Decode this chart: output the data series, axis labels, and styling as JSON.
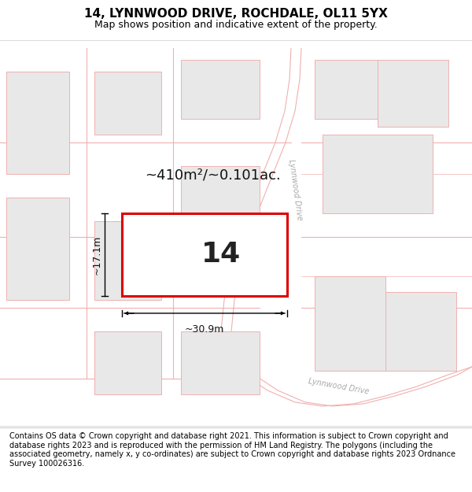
{
  "title": "14, LYNNWOOD DRIVE, ROCHDALE, OL11 5YX",
  "subtitle": "Map shows position and indicative extent of the property.",
  "footer": "Contains OS data © Crown copyright and database right 2021. This information is subject to Crown copyright and database rights 2023 and is reproduced with the permission of HM Land Registry. The polygons (including the associated geometry, namely x, y co-ordinates) are subject to Crown copyright and database rights 2023 Ordnance Survey 100026316.",
  "map_bg": "#ffffff",
  "plot_color_fill": "#ffffff",
  "plot_color_edge": "#dd0000",
  "road_line_color": "#f0b0b0",
  "building_fill": "#e8e8e8",
  "building_edge": "#f0b0b0",
  "area_label": "~410m²/~0.101ac.",
  "plot_label": "14",
  "width_label": "~30.9m",
  "height_label": "~17.1m",
  "title_fontsize": 11,
  "subtitle_fontsize": 9,
  "footer_fontsize": 7.0,
  "dim_fontsize": 9,
  "area_fontsize": 13,
  "road_label_color": "#aaaaaa",
  "road_label_fontsize": 7
}
